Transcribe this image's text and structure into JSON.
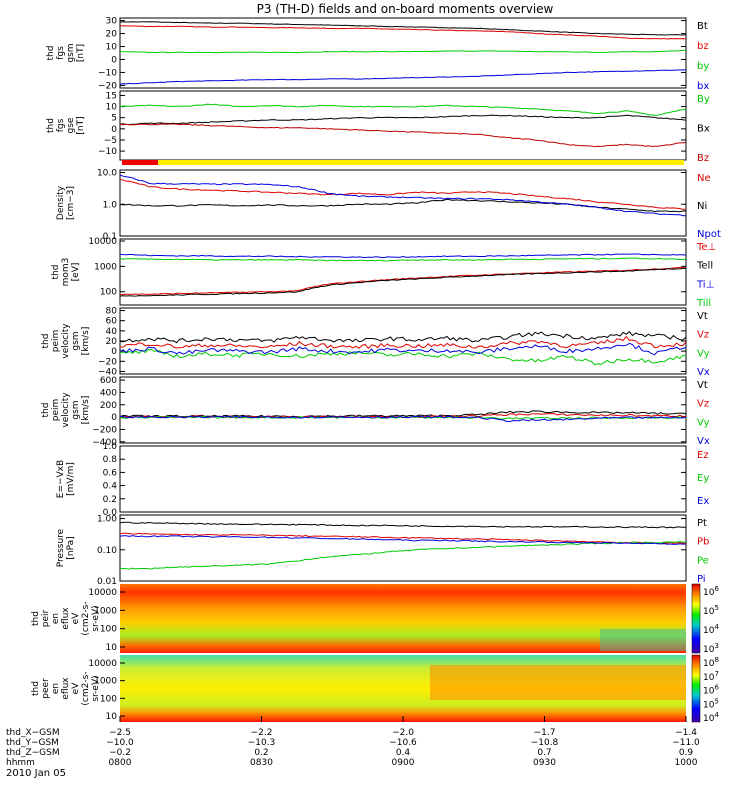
{
  "title": "P3 (TH-D) fields and on-board moments overview",
  "date_label": "2010 Jan 05",
  "colorbar_labels": {
    "panel9": [
      "10^6",
      "10^5",
      "10^4",
      "10^3"
    ],
    "panel10": [
      "10^8",
      "10^7",
      "10^6",
      "10^5",
      "10^4"
    ]
  },
  "chart_data": [
    {
      "type": "line",
      "panel": 1,
      "ylabel_lines": [
        "thd",
        "fgs",
        "gsm",
        "[nT]"
      ],
      "yticks": [
        "30",
        "20",
        "10",
        "0",
        "−10",
        "−20"
      ],
      "ylim": [
        -22,
        32
      ],
      "series": [
        {
          "name": "Bt",
          "color": "#000000",
          "values": [
            29,
            29,
            28.5,
            28,
            28,
            27.5,
            27,
            26.5,
            26,
            25.5,
            25,
            24.5,
            24,
            23,
            22,
            21,
            20,
            19.5,
            19,
            19
          ]
        },
        {
          "name": "bz",
          "color": "#dd0000",
          "values": [
            26,
            25.5,
            25.5,
            25,
            25,
            24.5,
            24.5,
            24,
            24,
            23.5,
            23,
            22.5,
            22,
            21.5,
            20,
            19,
            18,
            16.5,
            16,
            16
          ]
        },
        {
          "name": "by",
          "color": "#00cc00",
          "values": [
            6,
            5.5,
            5.5,
            5.5,
            5.5,
            5.5,
            5.5,
            6,
            6,
            6,
            6,
            6.5,
            6.5,
            6.5,
            6,
            6,
            5.5,
            6,
            6,
            7
          ]
        },
        {
          "name": "bx",
          "color": "#0000dd",
          "values": [
            -19,
            -18,
            -17,
            -16.5,
            -16,
            -15.5,
            -15.5,
            -15,
            -15,
            -14.5,
            -14,
            -13.5,
            -13,
            -12,
            -11,
            -10,
            -9.5,
            -9,
            -8.5,
            -8
          ]
        }
      ]
    },
    {
      "type": "line",
      "panel": 2,
      "ylabel_lines": [
        "thd",
        "fgs",
        "gse",
        "[nT]"
      ],
      "yticks": [
        "15",
        "10",
        "5",
        "0",
        "−5",
        "−10"
      ],
      "ylim": [
        -14,
        17
      ],
      "series": [
        {
          "name": "By",
          "color": "#00cc00",
          "values": [
            10,
            10.5,
            10,
            11,
            10,
            10.5,
            10,
            10.5,
            10,
            10,
            10,
            10.5,
            10,
            9.5,
            9,
            8,
            7,
            8,
            6,
            9
          ]
        },
        {
          "name": "Bx",
          "color": "#000000",
          "values": [
            2,
            2.5,
            2.5,
            3,
            3.5,
            4,
            4,
            4.5,
            5,
            5,
            5,
            5.5,
            6,
            6,
            5.5,
            5,
            5,
            6,
            5,
            4
          ]
        },
        {
          "name": "Bz",
          "color": "#bb0000",
          "values": [
            2,
            2,
            2,
            1.5,
            1,
            0.5,
            0.5,
            0,
            -0.5,
            -1,
            -1.5,
            -2,
            -2.5,
            -4,
            -5,
            -7,
            -8,
            -7,
            -8,
            -6
          ]
        }
      ]
    },
    {
      "type": "line",
      "panel": 3,
      "log": true,
      "ylabel_lines": [
        "Density",
        "[cm−3]"
      ],
      "yticks": [
        "10.0",
        "1.0",
        "0.1"
      ],
      "ylim": [
        0.1,
        12
      ],
      "series": [
        {
          "name": "Ne",
          "color": "#dd0000",
          "values": [
            6,
            3.5,
            3,
            2.8,
            2.6,
            2.4,
            2.2,
            2.0,
            2.2,
            2.0,
            2.4,
            2.2,
            2.5,
            2.2,
            1.8,
            1.5,
            1.2,
            1.0,
            0.8,
            0.7
          ]
        },
        {
          "name": "Ni",
          "color": "#000000",
          "values": [
            1.0,
            0.9,
            0.9,
            0.95,
            0.9,
            0.95,
            0.9,
            0.9,
            1.0,
            1.0,
            1.1,
            1.4,
            1.3,
            1.2,
            1.1,
            1.0,
            0.8,
            0.7,
            0.6,
            0.6
          ]
        },
        {
          "name": "Npot",
          "color": "#0000dd",
          "values": [
            8,
            4.5,
            4.4,
            4.3,
            4.3,
            4.2,
            3.5,
            2.2,
            1.8,
            1.7,
            1.6,
            1.5,
            1.5,
            1.4,
            1.2,
            1.0,
            0.8,
            0.6,
            0.5,
            0.45
          ]
        }
      ]
    },
    {
      "type": "line",
      "panel": 4,
      "log": true,
      "ylabel_lines": [
        "thd",
        "mom3",
        "[eV]"
      ],
      "yticks": [
        "10000",
        "1000",
        "100"
      ],
      "ylim": [
        30,
        12000
      ],
      "series": [
        {
          "name": "Te⊥",
          "color": "#dd0000",
          "values": [
            80,
            80,
            85,
            90,
            95,
            100,
            110,
            200,
            250,
            300,
            350,
            400,
            450,
            500,
            550,
            600,
            650,
            700,
            800,
            900
          ]
        },
        {
          "name": "Tell",
          "color": "#000000",
          "values": [
            70,
            70,
            75,
            80,
            85,
            90,
            100,
            180,
            230,
            280,
            320,
            370,
            420,
            470,
            520,
            560,
            610,
            650,
            750,
            850
          ]
        },
        {
          "name": "Ti⊥",
          "color": "#0000dd",
          "values": [
            3000,
            2700,
            2600,
            2600,
            2500,
            2500,
            2400,
            2400,
            2300,
            2300,
            2400,
            2500,
            2500,
            2600,
            2700,
            2800,
            2900,
            3000,
            2900,
            2800
          ]
        },
        {
          "name": "Till",
          "color": "#00cc00",
          "values": [
            2000,
            1900,
            1900,
            1800,
            1800,
            1800,
            1800,
            1700,
            1700,
            1700,
            1800,
            1800,
            1800,
            1900,
            1900,
            2000,
            2000,
            2100,
            2000,
            1900
          ]
        }
      ]
    },
    {
      "type": "line",
      "panel": 5,
      "ylabel_lines": [
        "thd",
        "peim",
        "velocity",
        "gsm",
        "[km/s]"
      ],
      "yticks": [
        "80",
        "60",
        "40",
        "20",
        "0",
        "−20",
        "−40"
      ],
      "ylim": [
        -45,
        85
      ],
      "series": [
        {
          "name": "Vt",
          "color": "#000000",
          "values": [
            20,
            25,
            20,
            25,
            22,
            20,
            28,
            22,
            20,
            25,
            22,
            26,
            20,
            28,
            35,
            30,
            25,
            35,
            30,
            25
          ]
        },
        {
          "name": "Vz",
          "color": "#dd0000",
          "values": [
            10,
            15,
            8,
            12,
            10,
            8,
            15,
            10,
            8,
            12,
            10,
            12,
            8,
            15,
            20,
            10,
            15,
            25,
            10,
            15
          ]
        },
        {
          "name": "Vy",
          "color": "#00cc00",
          "values": [
            -5,
            0,
            -10,
            -5,
            -8,
            -5,
            -10,
            -5,
            -3,
            -8,
            -5,
            -10,
            -5,
            -15,
            -20,
            -10,
            -25,
            -15,
            -20,
            -10
          ]
        },
        {
          "name": "Vx",
          "color": "#0000dd",
          "values": [
            0,
            5,
            -5,
            2,
            0,
            -2,
            5,
            0,
            -2,
            3,
            0,
            2,
            -3,
            5,
            10,
            0,
            5,
            15,
            -5,
            10
          ]
        }
      ]
    },
    {
      "type": "line",
      "panel": 6,
      "ylabel_lines": [
        "thd",
        "peim",
        "velocity",
        "gsm",
        "[km/s]"
      ],
      "yticks": [
        "600",
        "400",
        "200",
        "0",
        "−200",
        "−400"
      ],
      "ylim": [
        -420,
        650
      ],
      "series": [
        {
          "name": "Vt",
          "color": "#000000",
          "values": [
            15,
            15,
            15,
            15,
            15,
            15,
            15,
            15,
            20,
            20,
            20,
            25,
            40,
            80,
            90,
            80,
            70,
            70,
            60,
            50
          ]
        },
        {
          "name": "Vz",
          "color": "#dd0000",
          "values": [
            5,
            5,
            5,
            5,
            5,
            5,
            5,
            5,
            5,
            5,
            5,
            10,
            20,
            40,
            50,
            40,
            30,
            30,
            20,
            20
          ]
        },
        {
          "name": "Vy",
          "color": "#00cc00",
          "values": [
            -5,
            -5,
            -5,
            -5,
            -5,
            -5,
            -5,
            -5,
            -5,
            -5,
            -5,
            -5,
            -10,
            -20,
            -20,
            -15,
            -15,
            -10,
            -10,
            -10
          ]
        },
        {
          "name": "Vx",
          "color": "#0000dd",
          "values": [
            0,
            0,
            0,
            0,
            0,
            0,
            0,
            0,
            0,
            0,
            0,
            0,
            -5,
            -60,
            -50,
            -40,
            -20,
            -10,
            -10,
            -5
          ]
        }
      ]
    },
    {
      "type": "line",
      "panel": 7,
      "ylabel_lines": [
        "E=−VxB",
        "[mV/m]"
      ],
      "yticks": [
        "1.0",
        "0.8",
        "0.6",
        "0.4",
        "0.2",
        "0.0"
      ],
      "ylim": [
        0,
        1
      ],
      "series": [
        {
          "name": "Ez",
          "color": "#dd0000",
          "values": []
        },
        {
          "name": "Ey",
          "color": "#00cc00",
          "values": []
        },
        {
          "name": "Ex",
          "color": "#0000dd",
          "values": []
        }
      ]
    },
    {
      "type": "line",
      "panel": 8,
      "log": true,
      "ylabel_lines": [
        "Pressure",
        "[nPa]"
      ],
      "yticks": [
        "1.00",
        "0.10",
        "0.01"
      ],
      "ylim": [
        0.01,
        1.3
      ],
      "series": [
        {
          "name": "Pt",
          "color": "#000000",
          "values": [
            0.75,
            0.72,
            0.7,
            0.68,
            0.66,
            0.65,
            0.64,
            0.62,
            0.6,
            0.6,
            0.58,
            0.57,
            0.56,
            0.55,
            0.55,
            0.54,
            0.54,
            0.53,
            0.53,
            0.52
          ]
        },
        {
          "name": "Pb",
          "color": "#dd0000",
          "values": [
            0.33,
            0.32,
            0.31,
            0.3,
            0.3,
            0.29,
            0.28,
            0.27,
            0.26,
            0.25,
            0.24,
            0.23,
            0.22,
            0.21,
            0.2,
            0.19,
            0.18,
            0.17,
            0.17,
            0.16
          ]
        },
        {
          "name": "Pe",
          "color": "#00cc00",
          "values": [
            0.025,
            0.025,
            0.028,
            0.03,
            0.032,
            0.035,
            0.045,
            0.06,
            0.07,
            0.085,
            0.1,
            0.11,
            0.12,
            0.13,
            0.14,
            0.15,
            0.16,
            0.17,
            0.17,
            0.18
          ]
        },
        {
          "name": "Pi",
          "color": "#0000dd",
          "values": [
            0.28,
            0.27,
            0.27,
            0.26,
            0.26,
            0.25,
            0.24,
            0.23,
            0.22,
            0.21,
            0.2,
            0.2,
            0.19,
            0.18,
            0.18,
            0.17,
            0.17,
            0.16,
            0.16,
            0.15
          ]
        }
      ]
    },
    {
      "type": "heatmap",
      "panel": 9,
      "ylabel_lines": [
        "thd",
        "peir",
        "en",
        "eflux",
        "eV",
        "(cm2-s-",
        "sr-eV)"
      ],
      "yticks": [
        "10000",
        "1000",
        "100",
        "10"
      ]
    },
    {
      "type": "heatmap",
      "panel": 10,
      "ylabel_lines": [
        "thd",
        "peer",
        "en",
        "eflux",
        "eV",
        "(cm2-s-",
        "sr-eV)"
      ],
      "yticks": [
        "10000",
        "1000",
        "100",
        "10"
      ]
    }
  ],
  "xaxis": {
    "rows": [
      {
        "label": "thd_X−GSM",
        "values": [
          "−2.5",
          "−2.2",
          "−2.0",
          "−1.7",
          "−1.4"
        ]
      },
      {
        "label": "thd_Y−GSM",
        "values": [
          "−10.0",
          "−10.3",
          "−10.6",
          "−10.8",
          "−11.0"
        ]
      },
      {
        "label": "thd_Z−GSM",
        "values": [
          "−0.2",
          "0.2",
          "0.4",
          "0.7",
          "0.9"
        ]
      },
      {
        "label": "hhmm",
        "values": [
          "0800",
          "0830",
          "0900",
          "0930",
          "1000"
        ]
      }
    ]
  }
}
